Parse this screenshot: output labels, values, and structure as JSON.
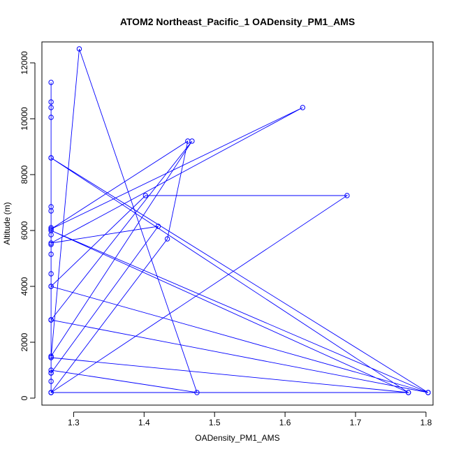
{
  "chart_data": {
    "type": "line",
    "title": "ATOM2 Northeast_Pacific_1 OADensity_PM1_AMS",
    "xlabel": "OADensity_PM1_AMS",
    "ylabel": "Altitude (m)",
    "xlim": [
      1.255,
      1.81
    ],
    "ylim": [
      -250,
      12750
    ],
    "x_ticks": [
      1.3,
      1.4,
      1.5,
      1.6,
      1.7,
      1.8
    ],
    "x_tick_labels": [
      "1.3",
      "1.4",
      "1.5",
      "1.6",
      "1.7",
      "1.8"
    ],
    "y_ticks": [
      0,
      2000,
      4000,
      6000,
      8000,
      10000,
      12000
    ],
    "y_tick_labels": [
      "0",
      "2000",
      "4000",
      "6000",
      "8000",
      "10000",
      "12000"
    ],
    "grid": false,
    "marker": "open-circle",
    "series": [
      {
        "color": "#0000ff",
        "points": [
          [
            1.268,
            11300
          ],
          [
            1.268,
            10600
          ],
          [
            1.268,
            10400
          ],
          [
            1.268,
            10050
          ],
          [
            1.268,
            8600
          ],
          [
            1.268,
            6850
          ],
          [
            1.268,
            6700
          ],
          [
            1.268,
            6100
          ],
          [
            1.268,
            5850
          ],
          [
            1.268,
            5500
          ],
          [
            1.268,
            5150
          ],
          [
            1.268,
            4450
          ],
          [
            1.268,
            4000
          ],
          [
            1.268,
            2800
          ],
          [
            1.268,
            2800
          ],
          [
            1.468,
            9200
          ],
          [
            1.268,
            1500
          ],
          [
            1.268,
            1450
          ],
          [
            1.308,
            12500
          ],
          [
            1.475,
            200
          ],
          [
            1.268,
            1000
          ],
          [
            1.268,
            900
          ],
          [
            1.268,
            600
          ],
          [
            1.268,
            200
          ],
          [
            1.268,
            200
          ],
          [
            1.775,
            200
          ],
          [
            1.268,
            8600
          ],
          [
            1.803,
            200
          ],
          [
            1.268,
            4000
          ],
          [
            1.402,
            7250
          ],
          [
            1.688,
            7250
          ],
          [
            1.268,
            200
          ],
          [
            1.433,
            5700
          ],
          [
            1.462,
            9200
          ],
          [
            1.268,
            6050
          ],
          [
            1.625,
            10400
          ],
          [
            1.268,
            5550
          ],
          [
            1.42,
            6150
          ],
          [
            1.268,
            900
          ],
          [
            1.268,
            2800
          ],
          [
            1.268,
            2800
          ],
          [
            1.803,
            200
          ],
          [
            1.268,
            6000
          ],
          [
            1.775,
            200
          ],
          [
            1.268,
            1450
          ]
        ]
      }
    ]
  }
}
